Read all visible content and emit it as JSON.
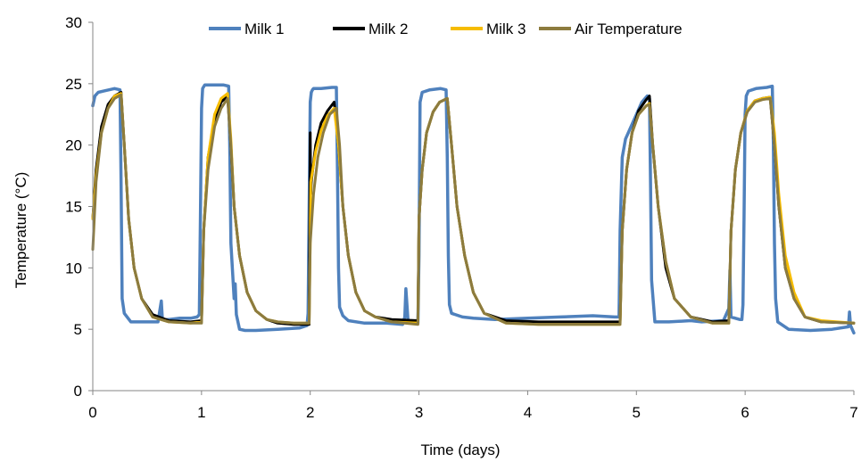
{
  "chart_data": {
    "type": "line",
    "title": "",
    "xlabel": "Time (days)",
    "ylabel": "Temperature (°C)",
    "xlim": [
      0,
      7
    ],
    "ylim": [
      0,
      30
    ],
    "xticks": [
      0,
      1,
      2,
      3,
      4,
      5,
      6,
      7
    ],
    "yticks": [
      0,
      5,
      10,
      15,
      20,
      25,
      30
    ],
    "grid": false,
    "legend_position": "top",
    "series": [
      {
        "name": "Milk 1",
        "color": "#4F81BD",
        "x": [
          0,
          0.02,
          0.05,
          0.1,
          0.2,
          0.25,
          0.26,
          0.27,
          0.29,
          0.35,
          0.45,
          0.6,
          0.63,
          0.64,
          0.7,
          0.8,
          0.9,
          0.96,
          0.98,
          0.99,
          1.0,
          1.01,
          1.03,
          1.1,
          1.2,
          1.25,
          1.26,
          1.27,
          1.3,
          1.31,
          1.32,
          1.35,
          1.4,
          1.5,
          1.7,
          1.9,
          1.97,
          1.98,
          1.99,
          2.0,
          2.01,
          2.02,
          2.03,
          2.1,
          2.2,
          2.24,
          2.25,
          2.26,
          2.27,
          2.3,
          2.35,
          2.5,
          2.7,
          2.85,
          2.87,
          2.88,
          2.9,
          2.99,
          3.0,
          3.01,
          3.03,
          3.1,
          3.2,
          3.25,
          3.26,
          3.27,
          3.28,
          3.3,
          3.4,
          3.5,
          3.7,
          4.0,
          4.3,
          4.6,
          4.8,
          4.84,
          4.85,
          4.87,
          4.9,
          5.0,
          5.05,
          5.08,
          5.1,
          5.12,
          5.13,
          5.14,
          5.17,
          5.3,
          5.5,
          5.6,
          5.8,
          5.85,
          5.86,
          5.87,
          5.95,
          5.97,
          5.98,
          5.99,
          6.0,
          6.01,
          6.03,
          6.1,
          6.2,
          6.25,
          6.26,
          6.27,
          6.28,
          6.3,
          6.4,
          6.6,
          6.8,
          6.95,
          6.96,
          6.97,
          7.0
        ],
        "y": [
          23.2,
          24.0,
          24.3,
          24.4,
          24.6,
          24.5,
          17.0,
          7.5,
          6.3,
          5.6,
          5.6,
          5.6,
          7.3,
          5.8,
          5.8,
          5.9,
          5.9,
          6.0,
          6.2,
          14.0,
          23.0,
          24.6,
          24.9,
          24.9,
          24.9,
          24.8,
          20.0,
          12.0,
          7.5,
          8.7,
          6.2,
          5.0,
          4.9,
          4.9,
          5.0,
          5.1,
          5.3,
          6.3,
          15.0,
          23.5,
          24.3,
          24.5,
          24.6,
          24.6,
          24.7,
          24.7,
          18.0,
          10.0,
          6.8,
          6.1,
          5.7,
          5.5,
          5.5,
          5.4,
          6.0,
          8.3,
          5.6,
          5.5,
          11.0,
          23.5,
          24.3,
          24.5,
          24.6,
          24.5,
          19.0,
          11.0,
          7.0,
          6.3,
          6.0,
          5.9,
          5.8,
          5.9,
          6.0,
          6.1,
          6.0,
          6.0,
          13.0,
          19.0,
          20.5,
          22.5,
          23.5,
          23.8,
          24.0,
          23.8,
          17.0,
          9.0,
          5.6,
          5.6,
          5.7,
          5.6,
          5.7,
          6.7,
          9.8,
          6.0,
          5.8,
          5.8,
          7.0,
          14.0,
          22.5,
          24.0,
          24.4,
          24.6,
          24.7,
          24.8,
          20.0,
          12.0,
          7.5,
          5.6,
          5.0,
          4.9,
          5.0,
          5.2,
          6.4,
          5.3,
          4.7
        ]
      },
      {
        "name": "Milk 2",
        "color": "#000000",
        "x": [
          0,
          0.03,
          0.08,
          0.14,
          0.2,
          0.26,
          0.29,
          0.33,
          0.38,
          0.45,
          0.55,
          0.7,
          0.9,
          1.0,
          1.02,
          1.06,
          1.12,
          1.18,
          1.24,
          1.27,
          1.3,
          1.35,
          1.42,
          1.5,
          1.6,
          1.7,
          1.85,
          1.99,
          2.0,
          2.005,
          2.01,
          2.05,
          2.1,
          2.16,
          2.22,
          2.26,
          2.3,
          2.35,
          2.42,
          2.5,
          2.6,
          2.75,
          2.99,
          3.0,
          3.03,
          3.07,
          3.13,
          3.19,
          3.26,
          3.3,
          3.35,
          3.42,
          3.5,
          3.6,
          3.8,
          4.1,
          4.5,
          4.85,
          4.87,
          4.91,
          4.96,
          5.02,
          5.09,
          5.12,
          5.15,
          5.2,
          5.27,
          5.35,
          5.5,
          5.7,
          5.85,
          5.87,
          5.91,
          5.96,
          6.02,
          6.09,
          6.16,
          6.23,
          6.27,
          6.31,
          6.37,
          6.45,
          6.55,
          6.7,
          7.0
        ],
        "y": [
          14.0,
          18.0,
          21.5,
          23.3,
          24.0,
          24.3,
          20.0,
          14.0,
          10.0,
          7.5,
          6.2,
          5.7,
          5.6,
          5.7,
          13.0,
          19.0,
          22.0,
          23.5,
          24.0,
          20.0,
          15.0,
          11.0,
          8.0,
          6.5,
          5.8,
          5.5,
          5.4,
          5.4,
          21.0,
          16.0,
          17.0,
          20.0,
          21.8,
          22.8,
          23.5,
          20.0,
          15.0,
          11.0,
          8.0,
          6.5,
          6.0,
          5.8,
          5.7,
          14.0,
          18.0,
          21.0,
          22.7,
          23.5,
          23.8,
          20.0,
          15.0,
          11.0,
          8.0,
          6.3,
          5.7,
          5.6,
          5.6,
          5.6,
          13.0,
          18.0,
          21.0,
          22.8,
          23.7,
          24.0,
          20.0,
          15.0,
          10.0,
          7.5,
          6.0,
          5.6,
          5.7,
          13.0,
          18.0,
          21.0,
          22.8,
          23.6,
          23.8,
          23.9,
          20.0,
          15.0,
          10.0,
          7.5,
          6.0,
          5.6,
          5.5
        ]
      },
      {
        "name": "Milk 3",
        "color": "#F6BC00",
        "x": [
          0,
          0.03,
          0.08,
          0.14,
          0.2,
          0.26,
          0.29,
          0.33,
          0.38,
          0.45,
          0.55,
          0.7,
          0.9,
          1.0,
          1.02,
          1.06,
          1.12,
          1.18,
          1.24,
          1.27,
          1.3,
          1.35,
          1.42,
          1.5,
          1.6,
          1.7,
          1.85,
          1.99,
          2.0,
          2.005,
          2.05,
          2.1,
          2.16,
          2.22,
          2.26,
          2.3,
          2.35,
          2.42,
          2.5,
          2.6,
          2.75,
          2.99,
          3.0,
          3.03,
          3.07,
          3.13,
          3.19,
          3.26,
          3.3,
          3.35,
          3.42,
          3.5,
          3.6,
          3.8,
          4.1,
          4.5,
          4.85,
          4.87,
          4.91,
          4.96,
          5.02,
          5.09,
          5.12,
          5.15,
          5.2,
          5.27,
          5.35,
          5.5,
          5.7,
          5.85,
          5.87,
          5.91,
          5.96,
          6.02,
          6.09,
          6.16,
          6.23,
          6.27,
          6.31,
          6.37,
          6.45,
          6.55,
          6.7,
          7.0
        ],
        "y": [
          14.0,
          17.5,
          21.0,
          23.0,
          24.0,
          24.2,
          20.0,
          14.0,
          10.0,
          7.5,
          6.0,
          5.6,
          5.5,
          5.6,
          13.0,
          19.0,
          22.5,
          23.8,
          24.2,
          20.5,
          15.0,
          11.0,
          8.0,
          6.5,
          5.8,
          5.6,
          5.5,
          5.5,
          12.0,
          17.0,
          19.5,
          21.2,
          22.4,
          23.0,
          20.0,
          15.0,
          11.0,
          8.0,
          6.5,
          6.0,
          5.6,
          5.5,
          14.0,
          18.0,
          21.0,
          22.7,
          23.5,
          23.8,
          20.0,
          15.0,
          11.0,
          8.0,
          6.3,
          5.5,
          5.4,
          5.4,
          5.4,
          13.0,
          18.0,
          21.0,
          22.5,
          23.2,
          23.4,
          20.0,
          15.0,
          10.5,
          7.5,
          6.0,
          5.5,
          5.5,
          13.0,
          18.0,
          21.0,
          22.8,
          23.6,
          23.8,
          23.9,
          21.0,
          16.0,
          11.0,
          8.0,
          6.0,
          5.7,
          5.5
        ]
      },
      {
        "name": "Air Temperature",
        "color": "#8C7B3E",
        "x": [
          0,
          0.03,
          0.08,
          0.14,
          0.2,
          0.26,
          0.29,
          0.33,
          0.38,
          0.45,
          0.55,
          0.7,
          0.9,
          1.0,
          1.02,
          1.06,
          1.12,
          1.18,
          1.24,
          1.27,
          1.3,
          1.35,
          1.42,
          1.5,
          1.6,
          1.7,
          1.85,
          1.99,
          2.0,
          2.03,
          2.07,
          2.12,
          2.18,
          2.24,
          2.27,
          2.3,
          2.35,
          2.42,
          2.5,
          2.6,
          2.75,
          2.99,
          3.0,
          3.03,
          3.07,
          3.13,
          3.19,
          3.26,
          3.3,
          3.35,
          3.42,
          3.5,
          3.6,
          3.8,
          4.1,
          4.5,
          4.85,
          4.87,
          4.91,
          4.96,
          5.02,
          5.09,
          5.12,
          5.15,
          5.2,
          5.27,
          5.35,
          5.5,
          5.7,
          5.85,
          5.87,
          5.91,
          5.96,
          6.02,
          6.09,
          6.16,
          6.23,
          6.27,
          6.31,
          6.37,
          6.45,
          6.55,
          6.7,
          7.0
        ],
        "y": [
          11.5,
          17.0,
          21.0,
          23.0,
          23.8,
          24.1,
          20.0,
          14.0,
          10.0,
          7.5,
          6.0,
          5.6,
          5.5,
          5.5,
          13.0,
          18.0,
          21.5,
          23.0,
          23.8,
          20.0,
          15.0,
          11.0,
          8.0,
          6.5,
          5.8,
          5.6,
          5.5,
          5.5,
          12.0,
          16.0,
          19.0,
          21.0,
          22.5,
          23.0,
          20.0,
          15.0,
          11.0,
          8.0,
          6.5,
          6.0,
          5.6,
          5.4,
          14.0,
          18.0,
          21.0,
          22.7,
          23.5,
          23.8,
          20.0,
          15.0,
          11.0,
          8.0,
          6.3,
          5.5,
          5.4,
          5.4,
          5.4,
          13.0,
          18.0,
          21.0,
          22.5,
          23.2,
          23.3,
          20.0,
          15.0,
          10.5,
          7.5,
          6.0,
          5.5,
          5.5,
          13.0,
          18.0,
          21.0,
          22.7,
          23.5,
          23.7,
          23.8,
          20.0,
          15.0,
          10.0,
          7.5,
          6.0,
          5.6,
          5.5
        ]
      }
    ]
  }
}
